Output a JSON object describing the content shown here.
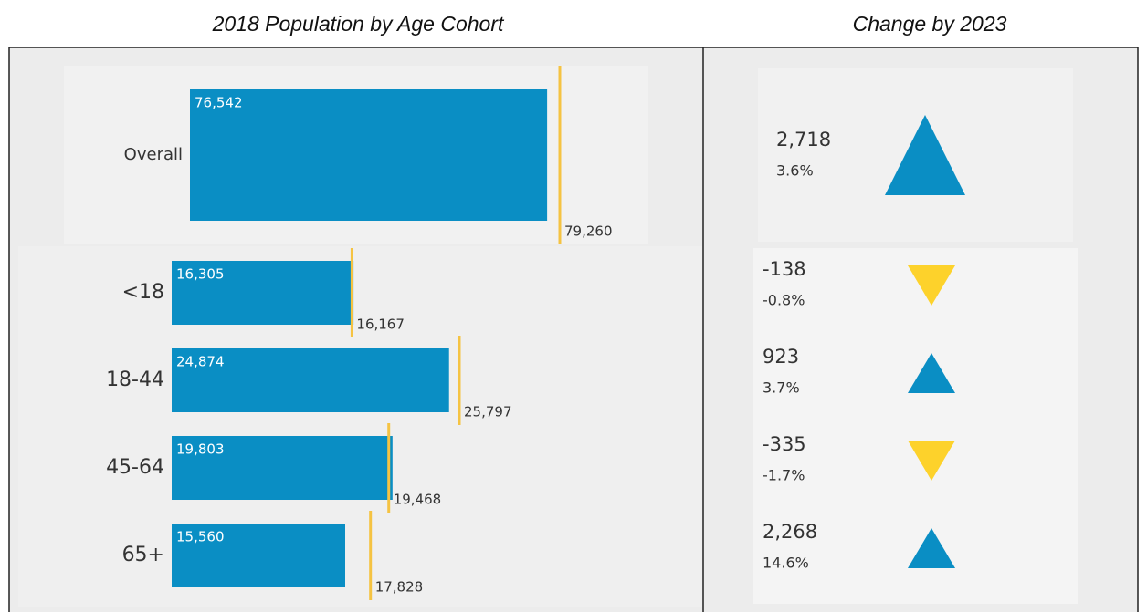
{
  "chart_data": [
    {
      "type": "bar",
      "title": "2018 Population by Age Cohort",
      "categories": [
        "Overall"
      ],
      "values": [
        76542
      ],
      "value_labels": [
        "76,542"
      ],
      "targets": [
        79260
      ],
      "target_labels": [
        "79,260"
      ],
      "color": "#0a8ec4",
      "target_color": "#f5c342"
    },
    {
      "type": "bar",
      "categories": [
        "<18",
        "18-44",
        "45-64",
        "65+"
      ],
      "values": [
        16305,
        24874,
        19803,
        15560
      ],
      "value_labels": [
        "16,305",
        "24,874",
        "19,803",
        "15,560"
      ],
      "targets": [
        16167,
        25797,
        19468,
        17828
      ],
      "target_labels": [
        "16,167",
        "25,797",
        "19,468",
        "17,828"
      ],
      "color": "#0a8ec4",
      "target_color": "#f5c342"
    },
    {
      "type": "indicator",
      "title": "Change by 2023",
      "values": [
        2718,
        -138,
        923,
        -335,
        2268
      ],
      "value_labels": [
        "2,718",
        "-138",
        "923",
        "-335",
        "2,268"
      ],
      "percents": [
        3.6,
        -0.8,
        3.7,
        -1.7,
        14.6
      ],
      "percent_labels": [
        "3.6%",
        "-0.8%",
        "3.7%",
        "-1.7%",
        "14.6%"
      ],
      "up_color": "#0a8ec4",
      "down_color": "#fdd22b"
    }
  ]
}
